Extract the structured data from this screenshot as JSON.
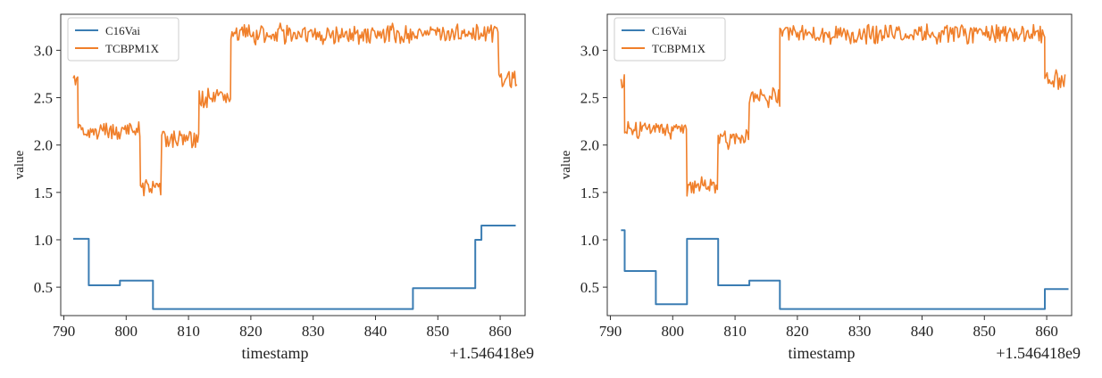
{
  "chart_data": [
    {
      "type": "line",
      "xlabel": "timestamp",
      "ylabel": "value",
      "x_offset_label": "+1.546418e9",
      "xlim": [
        789.5,
        864
      ],
      "ylim": [
        0.2,
        3.38
      ],
      "xticks": [
        790,
        800,
        810,
        820,
        830,
        840,
        850,
        860
      ],
      "yticks": [
        0.5,
        1.0,
        1.5,
        2.0,
        2.5,
        3.0
      ],
      "ytick_labels": [
        "0.5",
        "1.0",
        "1.5",
        "2.0",
        "2.5",
        "3.0"
      ],
      "legend_position": "top-left",
      "series": [
        {
          "name": "C16Vai",
          "color": "#3b7db3",
          "style": "step",
          "points": [
            [
              791.5,
              1.01
            ],
            [
              794,
              1.01
            ],
            [
              794,
              0.52
            ],
            [
              799,
              0.52
            ],
            [
              799,
              0.57
            ],
            [
              804.3,
              0.57
            ],
            [
              804.3,
              0.27
            ],
            [
              846,
              0.27
            ],
            [
              846,
              0.49
            ],
            [
              856,
              0.49
            ],
            [
              856,
              1.0
            ],
            [
              857,
              1.0
            ],
            [
              857,
              1.15
            ],
            [
              862.5,
              1.15
            ]
          ]
        },
        {
          "name": "TCBPM1X",
          "color": "#f07f2a",
          "style": "noisy",
          "levels": [
            [
              791.5,
              2.68
            ],
            [
              792.3,
              2.15
            ],
            [
              802.3,
              1.55
            ],
            [
              805.7,
              2.06
            ],
            [
              811.7,
              2.5
            ],
            [
              816.8,
              3.17
            ],
            [
              859.8,
              2.7
            ],
            [
              862.8,
              2.7
            ]
          ]
        }
      ]
    },
    {
      "type": "line",
      "xlabel": "timestamp",
      "ylabel": "value",
      "x_offset_label": "+1.546418e9",
      "xlim": [
        789.5,
        864
      ],
      "ylim": [
        0.2,
        3.38
      ],
      "xticks": [
        790,
        800,
        810,
        820,
        830,
        840,
        850,
        860
      ],
      "yticks": [
        0.5,
        1.0,
        1.5,
        2.0,
        2.5,
        3.0
      ],
      "ytick_labels": [
        "0.5",
        "1.0",
        "1.5",
        "2.0",
        "2.5",
        "3.0"
      ],
      "legend_position": "top-left",
      "series": [
        {
          "name": "C16Vai",
          "color": "#3b7db3",
          "style": "step",
          "points": [
            [
              791.7,
              1.1
            ],
            [
              792.3,
              1.1
            ],
            [
              792.3,
              0.67
            ],
            [
              797.3,
              0.67
            ],
            [
              797.3,
              0.32
            ],
            [
              802.3,
              0.32
            ],
            [
              802.3,
              1.01
            ],
            [
              807.3,
              1.01
            ],
            [
              807.3,
              0.52
            ],
            [
              812.3,
              0.52
            ],
            [
              812.3,
              0.57
            ],
            [
              817.2,
              0.57
            ],
            [
              817.2,
              0.27
            ],
            [
              859.7,
              0.27
            ],
            [
              859.7,
              0.48
            ],
            [
              863.5,
              0.48
            ]
          ]
        },
        {
          "name": "TCBPM1X",
          "color": "#f07f2a",
          "style": "noisy",
          "levels": [
            [
              791.7,
              2.68
            ],
            [
              792.3,
              2.15
            ],
            [
              802.3,
              1.55
            ],
            [
              807.3,
              2.06
            ],
            [
              812.3,
              2.5
            ],
            [
              817.2,
              3.17
            ],
            [
              859.7,
              2.7
            ],
            [
              863.0,
              2.7
            ]
          ]
        }
      ]
    }
  ]
}
